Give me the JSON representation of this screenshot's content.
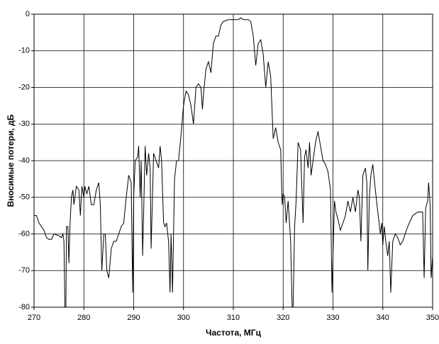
{
  "chart_data": {
    "type": "line",
    "x_label": "Частота, МГц",
    "y_label": "Вносимые потери, дБ",
    "color": "#000000",
    "grid": true,
    "xlim": [
      270,
      350
    ],
    "ylim": [
      -80,
      0
    ],
    "xticks": [
      270,
      280,
      290,
      300,
      310,
      320,
      330,
      340,
      350
    ],
    "yticks": [
      0,
      -10,
      -20,
      -30,
      -40,
      -50,
      -60,
      -70,
      -80
    ],
    "x": [
      270,
      270.5,
      271,
      272,
      272.5,
      273,
      273.5,
      274,
      275,
      275.5,
      275.8,
      276,
      276.2,
      276.4,
      276.5,
      276.8,
      277,
      277.2,
      277.5,
      277.8,
      278,
      278.5,
      279,
      279.3,
      279.6,
      280,
      280.2,
      280.6,
      281,
      281.5,
      282,
      282.5,
      283,
      283.3,
      283.6,
      284,
      284.3,
      284.6,
      285,
      285.5,
      286,
      286.5,
      287,
      287.5,
      288,
      288.5,
      289,
      289.5,
      289.8,
      290,
      290.3,
      290.8,
      291,
      291.3,
      291.5,
      291.8,
      292,
      292.3,
      292.6,
      293,
      293.3,
      293.5,
      294,
      294.5,
      295,
      295.3,
      295.6,
      296,
      296.3,
      296.6,
      297,
      297.3,
      297.5,
      297.8,
      298,
      298.2,
      298.6,
      299,
      299.5,
      300,
      300.5,
      301,
      301.5,
      302,
      302.5,
      303,
      303.5,
      303.8,
      304,
      304.5,
      305,
      305.5,
      306,
      306.5,
      307,
      307.5,
      308,
      309,
      310,
      311,
      311.5,
      312,
      313,
      313.5,
      314,
      314.5,
      315,
      315.5,
      316,
      316.5,
      317,
      317.5,
      318,
      318.5,
      319,
      319.5,
      319.8,
      320,
      320.3,
      320.6,
      321,
      321.5,
      321.8,
      322,
      322.3,
      322.6,
      323,
      323.5,
      324,
      324.3,
      324.6,
      325,
      325.3,
      325.6,
      326,
      326.5,
      327,
      327.5,
      328,
      328.5,
      329,
      329.5,
      329.8,
      330,
      330.3,
      330.6,
      331,
      331.5,
      332,
      332.5,
      333,
      333.5,
      334,
      334.5,
      335,
      335.3,
      335.6,
      336,
      336.5,
      336.8,
      337,
      337.3,
      337.6,
      338,
      338.5,
      339,
      339.5,
      339.8,
      340,
      340.3,
      340.6,
      341,
      341.3,
      341.6,
      342,
      342.5,
      343,
      343.5,
      344,
      344.5,
      345,
      346,
      347,
      348,
      348.3,
      348.6,
      349,
      349.2,
      349.5,
      349.7,
      350
    ],
    "values": [
      -55,
      -55,
      -57,
      -59,
      -61,
      -61.5,
      -61.5,
      -60,
      -60.5,
      -61,
      -60,
      -62,
      -80,
      -80,
      -58,
      -58,
      -68,
      -58,
      -50,
      -48,
      -52,
      -47,
      -48,
      -55,
      -47,
      -50,
      -47,
      -49,
      -47,
      -52,
      -52,
      -48,
      -46,
      -52,
      -70,
      -60,
      -60,
      -70,
      -72,
      -64,
      -62,
      -62,
      -60,
      -58,
      -57,
      -50,
      -44,
      -46,
      -76,
      -50,
      -40,
      -39,
      -36,
      -50,
      -40,
      -66,
      -54,
      -36,
      -44,
      -38,
      -42,
      -64,
      -38,
      -40,
      -42,
      -36,
      -40,
      -57,
      -58,
      -57,
      -62,
      -76,
      -60,
      -76,
      -60,
      -45,
      -40,
      -40,
      -33,
      -25,
      -21,
      -22,
      -25,
      -30,
      -20,
      -19,
      -20,
      -26,
      -22,
      -15,
      -13,
      -16,
      -8,
      -6,
      -6,
      -3,
      -2,
      -1.5,
      -1.5,
      -1.5,
      -1,
      -1.5,
      -1.5,
      -2,
      -6,
      -14,
      -8,
      -7,
      -11,
      -20,
      -13,
      -17,
      -34,
      -31,
      -35,
      -37,
      -52,
      -49,
      -50,
      -57,
      -51,
      -62,
      -80,
      -80,
      -58,
      -51,
      -35,
      -37,
      -57,
      -39,
      -37,
      -42,
      -35,
      -44,
      -40,
      -35,
      -32,
      -36,
      -40,
      -41,
      -43,
      -48,
      -76,
      -66,
      -51,
      -54,
      -56,
      -59,
      -57,
      -55,
      -51,
      -54,
      -50,
      -54,
      -48,
      -50,
      -62,
      -44,
      -42,
      -46,
      -70,
      -50,
      -44,
      -41,
      -48,
      -54,
      -60,
      -57,
      -63,
      -58,
      -62,
      -66,
      -62,
      -76,
      -62,
      -60,
      -61,
      -63,
      -62,
      -60,
      -58,
      -55,
      -54,
      -54,
      -72,
      -53,
      -51,
      -46,
      -52,
      -72,
      -66
    ]
  }
}
